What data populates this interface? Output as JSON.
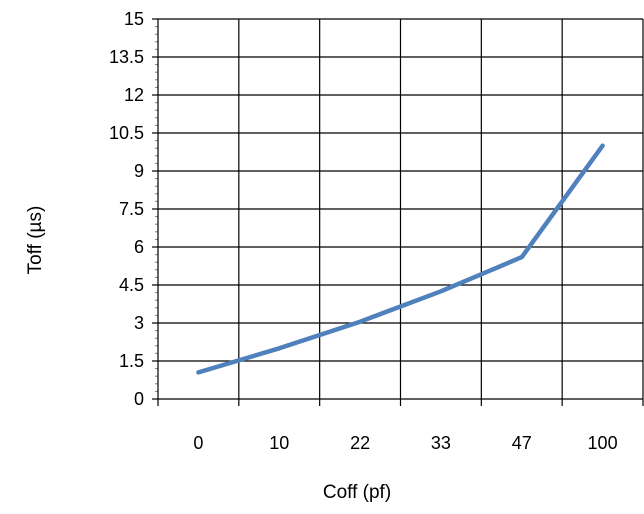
{
  "chart_data": {
    "type": "line",
    "categories": [
      "0",
      "10",
      "22",
      "33",
      "47",
      "100"
    ],
    "series": [
      {
        "values": [
          1.05,
          2.0,
          3.05,
          4.25,
          5.6,
          10.0
        ],
        "color": "#4F81BD"
      }
    ],
    "xlabel": "Coff (pf)",
    "ylabel": "Toff (µs)",
    "ylim": [
      0,
      15
    ],
    "yticks": [
      "0",
      "1.5",
      "3",
      "4.5",
      "6",
      "7.5",
      "9",
      "10.5",
      "12",
      "13.5",
      "15"
    ],
    "grid": true,
    "legend": "none"
  }
}
